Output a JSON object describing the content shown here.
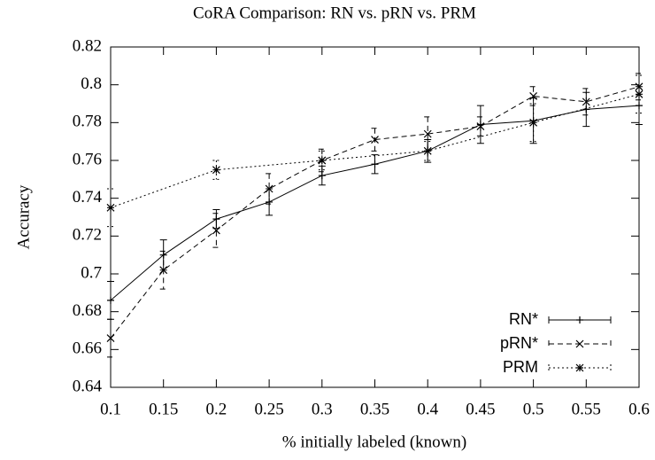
{
  "chart_data": {
    "type": "line",
    "title": "CoRA Comparison: RN vs. pRN vs. PRM",
    "x_label": "% initially labeled (known)",
    "y_label": "Accuracy",
    "xlim": [
      0.1,
      0.6
    ],
    "xticks": [
      0.1,
      0.15,
      0.2,
      0.25,
      0.3,
      0.35,
      0.4,
      0.45,
      0.5,
      0.55,
      0.6
    ],
    "ylim": [
      0.64,
      0.82
    ],
    "yticks": [
      0.64,
      0.66,
      0.68,
      0.7,
      0.72,
      0.74,
      0.76,
      0.78,
      0.8,
      0.82
    ],
    "legend": "lower right",
    "series": [
      {
        "name": "RN*",
        "color": "#000000",
        "dash": "solid",
        "marker": "plus",
        "x": [
          0.1,
          0.15,
          0.2,
          0.25,
          0.3,
          0.35,
          0.4,
          0.45,
          0.5,
          0.55,
          0.6
        ],
        "values": [
          0.686,
          0.71,
          0.729,
          0.738,
          0.752,
          0.758,
          0.765,
          0.779,
          0.781,
          0.787,
          0.789
        ],
        "errors": [
          0.01,
          0.008,
          0.005,
          0.007,
          0.005,
          0.005,
          0.006,
          0.01,
          0.012,
          0.009,
          0.01
        ]
      },
      {
        "name": "pRN*",
        "color": "#000000",
        "dash": "dashed",
        "marker": "cross",
        "x": [
          0.1,
          0.15,
          0.2,
          0.25,
          0.3,
          0.35,
          0.4,
          0.45,
          0.5,
          0.55,
          0.6
        ],
        "values": [
          0.666,
          0.702,
          0.723,
          0.745,
          0.76,
          0.771,
          0.774,
          0.778,
          0.794,
          0.791,
          0.799
        ],
        "errors": [
          0.01,
          0.01,
          0.009,
          0.008,
          0.006,
          0.006,
          0.009,
          0.005,
          0.005,
          0.007,
          0.007
        ]
      },
      {
        "name": "PRM",
        "color": "#000000",
        "dash": "dotted",
        "marker": "star",
        "x": [
          0.1,
          0.2,
          0.3,
          0.4,
          0.5,
          0.6
        ],
        "values": [
          0.735,
          0.755,
          0.76,
          0.765,
          0.78,
          0.795
        ],
        "errors": [
          0.01,
          0.005,
          0.005,
          0.005,
          0.01,
          0.01
        ]
      }
    ]
  }
}
